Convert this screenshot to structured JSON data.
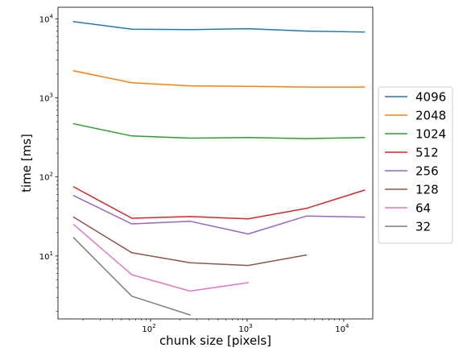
{
  "chart_data": {
    "type": "line",
    "xlabel": "chunk size [pixels]",
    "ylabel": "time [ms]",
    "xscale": "log",
    "yscale": "log",
    "xlim": [
      11,
      20000
    ],
    "ylim": [
      1.6,
      14000
    ],
    "x_ticks": [
      {
        "value": 100,
        "label": "10^2"
      },
      {
        "value": 1000,
        "label": "10^3"
      },
      {
        "value": 10000,
        "label": "10^4"
      }
    ],
    "y_ticks": [
      {
        "value": 10,
        "label": "10^1"
      },
      {
        "value": 100,
        "label": "10^2"
      },
      {
        "value": 1000,
        "label": "10^3"
      },
      {
        "value": 10000,
        "label": "10^4"
      }
    ],
    "grid": false,
    "legend_position": "outside-right",
    "series": [
      {
        "name": "4096",
        "color": "#1f77b4",
        "x": [
          16,
          64,
          256,
          1024,
          4096,
          16384
        ],
        "y": [
          9200,
          7400,
          7300,
          7500,
          7000,
          6800
        ]
      },
      {
        "name": "2048",
        "color": "#ff7f0e",
        "x": [
          16,
          64,
          256,
          1024,
          4096,
          16384
        ],
        "y": [
          2200,
          1550,
          1420,
          1400,
          1370,
          1370
        ]
      },
      {
        "name": "1024",
        "color": "#2ca02c",
        "x": [
          16,
          64,
          256,
          1024,
          4096,
          16384
        ],
        "y": [
          470,
          330,
          310,
          315,
          305,
          315
        ]
      },
      {
        "name": "512",
        "color": "#d62728",
        "x": [
          16,
          64,
          256,
          1024,
          4096,
          16384
        ],
        "y": [
          75,
          30,
          31.5,
          29.5,
          40,
          68
        ]
      },
      {
        "name": "256",
        "color": "#9467bd",
        "x": [
          16,
          64,
          256,
          1024,
          4096,
          16384
        ],
        "y": [
          58,
          25.5,
          27.5,
          19,
          32,
          31
        ]
      },
      {
        "name": "128",
        "color": "#8c564b",
        "x": [
          16,
          64,
          256,
          1024,
          4096
        ],
        "y": [
          31,
          11,
          8.2,
          7.6,
          10.3
        ]
      },
      {
        "name": "64",
        "color": "#e377c2",
        "x": [
          16,
          64,
          256,
          1024
        ],
        "y": [
          25,
          5.8,
          3.6,
          4.6
        ]
      },
      {
        "name": "32",
        "color": "#7f7f7f",
        "x": [
          16,
          64,
          256
        ],
        "y": [
          17,
          3.1,
          1.8
        ]
      }
    ]
  }
}
